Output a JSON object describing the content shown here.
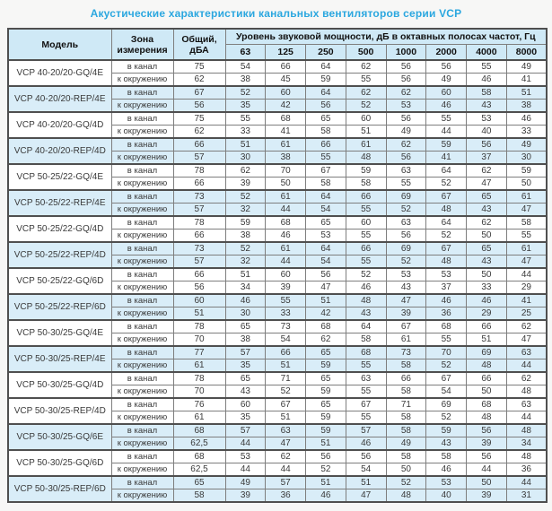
{
  "colors": {
    "accent": "#2ba7df",
    "header_bg": "#cfe9f6",
    "shaded_bg": "#d9edf8",
    "grid": "#7e7e7e",
    "heavy": "#4f4f4f",
    "text": "#3a3a3a"
  },
  "chart_data": {
    "type": "table",
    "title": "Акустические характеристики канальных вентиляторов серии VCP",
    "headers": {
      "model": "Модель",
      "zone": "Зона измерения",
      "total": "Общий, дБА",
      "spl": "Уровень звуковой мощности, дБ в октавных полосах частот, Гц"
    },
    "frequencies": [
      "63",
      "125",
      "250",
      "500",
      "1000",
      "2000",
      "4000",
      "8000"
    ],
    "zone_labels": [
      "в канал",
      "к окружению"
    ],
    "models": [
      {
        "name": "VCP 40-20/20-GQ/4E",
        "shaded": false,
        "rows": [
          {
            "zone": "в канал",
            "total": "75",
            "bands": [
              54,
              66,
              64,
              62,
              56,
              56,
              55,
              49
            ]
          },
          {
            "zone": "к окружению",
            "total": "62",
            "bands": [
              38,
              45,
              59,
              55,
              56,
              49,
              46,
              41
            ]
          }
        ]
      },
      {
        "name": "VCP 40-20/20-REP/4E",
        "shaded": true,
        "rows": [
          {
            "zone": "в канал",
            "total": "67",
            "bands": [
              52,
              60,
              64,
              62,
              62,
              60,
              58,
              51
            ]
          },
          {
            "zone": "к окружению",
            "total": "56",
            "bands": [
              35,
              42,
              56,
              52,
              53,
              46,
              43,
              38
            ]
          }
        ]
      },
      {
        "name": "VCP 40-20/20-GQ/4D",
        "shaded": false,
        "rows": [
          {
            "zone": "в канал",
            "total": "75",
            "bands": [
              55,
              68,
              65,
              60,
              56,
              55,
              53,
              46
            ]
          },
          {
            "zone": "к окружению",
            "total": "62",
            "bands": [
              33,
              41,
              58,
              51,
              49,
              44,
              40,
              33
            ]
          }
        ]
      },
      {
        "name": "VCP 40-20/20-REP/4D",
        "shaded": true,
        "rows": [
          {
            "zone": "в канал",
            "total": "66",
            "bands": [
              51,
              61,
              66,
              61,
              62,
              59,
              56,
              49
            ]
          },
          {
            "zone": "к окружению",
            "total": "57",
            "bands": [
              30,
              38,
              55,
              48,
              56,
              41,
              37,
              30
            ]
          }
        ]
      },
      {
        "name": "VCP 50-25/22-GQ/4E",
        "shaded": false,
        "rows": [
          {
            "zone": "в канал",
            "total": "78",
            "bands": [
              62,
              70,
              67,
              59,
              63,
              64,
              62,
              59
            ]
          },
          {
            "zone": "к окружению",
            "total": "66",
            "bands": [
              39,
              50,
              58,
              58,
              55,
              52,
              47,
              50
            ]
          }
        ]
      },
      {
        "name": "VCP 50-25/22-REP/4E",
        "shaded": true,
        "rows": [
          {
            "zone": "в канал",
            "total": "73",
            "bands": [
              52,
              61,
              64,
              66,
              69,
              67,
              65,
              61
            ]
          },
          {
            "zone": "к окружению",
            "total": "57",
            "bands": [
              32,
              44,
              54,
              55,
              52,
              48,
              43,
              47
            ]
          }
        ]
      },
      {
        "name": "VCP 50-25/22-GQ/4D",
        "shaded": false,
        "rows": [
          {
            "zone": "в канал",
            "total": "78",
            "bands": [
              59,
              68,
              65,
              60,
              63,
              64,
              62,
              58
            ]
          },
          {
            "zone": "к окружению",
            "total": "66",
            "bands": [
              38,
              46,
              53,
              55,
              56,
              52,
              50,
              55
            ]
          }
        ]
      },
      {
        "name": "VCP 50-25/22-REP/4D",
        "shaded": true,
        "rows": [
          {
            "zone": "в канал",
            "total": "73",
            "bands": [
              52,
              61,
              64,
              66,
              69,
              67,
              65,
              61
            ]
          },
          {
            "zone": "к окружению",
            "total": "57",
            "bands": [
              32,
              44,
              54,
              55,
              52,
              48,
              43,
              47
            ]
          }
        ]
      },
      {
        "name": "VCP 50-25/22-GQ/6D",
        "shaded": false,
        "rows": [
          {
            "zone": "в канал",
            "total": "66",
            "bands": [
              51,
              60,
              56,
              52,
              53,
              53,
              50,
              44
            ]
          },
          {
            "zone": "к окружению",
            "total": "56",
            "bands": [
              34,
              39,
              47,
              46,
              43,
              37,
              33,
              29
            ]
          }
        ]
      },
      {
        "name": "VCP 50-25/22-REP/6D",
        "shaded": true,
        "rows": [
          {
            "zone": "в канал",
            "total": "60",
            "bands": [
              46,
              55,
              51,
              48,
              47,
              46,
              46,
              41
            ]
          },
          {
            "zone": "к окружению",
            "total": "51",
            "bands": [
              30,
              33,
              42,
              43,
              39,
              36,
              29,
              25
            ]
          }
        ]
      },
      {
        "name": "VCP 50-30/25-GQ/4E",
        "shaded": false,
        "rows": [
          {
            "zone": "в канал",
            "total": "78",
            "bands": [
              65,
              73,
              68,
              64,
              67,
              68,
              66,
              62
            ]
          },
          {
            "zone": "к окружению",
            "total": "70",
            "bands": [
              38,
              54,
              62,
              58,
              61,
              55,
              51,
              47
            ]
          }
        ]
      },
      {
        "name": "VCP 50-30/25-REP/4E",
        "shaded": true,
        "rows": [
          {
            "zone": "в канал",
            "total": "77",
            "bands": [
              57,
              66,
              65,
              68,
              73,
              70,
              69,
              63
            ]
          },
          {
            "zone": "к окружению",
            "total": "61",
            "bands": [
              35,
              51,
              59,
              55,
              58,
              52,
              48,
              44
            ]
          }
        ]
      },
      {
        "name": "VCP 50-30/25-GQ/4D",
        "shaded": false,
        "rows": [
          {
            "zone": "в канал",
            "total": "78",
            "bands": [
              65,
              71,
              65,
              63,
              66,
              67,
              66,
              62
            ]
          },
          {
            "zone": "к окружению",
            "total": "70",
            "bands": [
              43,
              52,
              59,
              55,
              58,
              54,
              50,
              48
            ]
          }
        ]
      },
      {
        "name": "VCP 50-30/25-REP/4D",
        "shaded": false,
        "rows": [
          {
            "zone": "в канал",
            "total": "76",
            "bands": [
              60,
              67,
              65,
              67,
              71,
              69,
              68,
              63
            ]
          },
          {
            "zone": "к окружению",
            "total": "61",
            "bands": [
              35,
              51,
              59,
              55,
              58,
              52,
              48,
              44
            ]
          }
        ]
      },
      {
        "name": "VCP 50-30/25-GQ/6E",
        "shaded": true,
        "rows": [
          {
            "zone": "в канал",
            "total": "68",
            "bands": [
              57,
              63,
              59,
              57,
              58,
              59,
              56,
              48
            ]
          },
          {
            "zone": "к окружению",
            "total": "62,5",
            "bands": [
              44,
              47,
              51,
              46,
              49,
              43,
              39,
              34
            ]
          }
        ]
      },
      {
        "name": "VCP 50-30/25-GQ/6D",
        "shaded": false,
        "rows": [
          {
            "zone": "в канал",
            "total": "68",
            "bands": [
              53,
              62,
              56,
              56,
              58,
              58,
              56,
              48
            ]
          },
          {
            "zone": "к окружению",
            "total": "62,5",
            "bands": [
              44,
              44,
              52,
              54,
              50,
              46,
              44,
              36
            ]
          }
        ]
      },
      {
        "name": "VCP 50-30/25-REP/6D",
        "shaded": true,
        "rows": [
          {
            "zone": "в канал",
            "total": "65",
            "bands": [
              49,
              57,
              51,
              51,
              52,
              53,
              50,
              44
            ]
          },
          {
            "zone": "к окружению",
            "total": "58",
            "bands": [
              39,
              36,
              46,
              47,
              48,
              40,
              39,
              31
            ]
          }
        ]
      }
    ]
  }
}
